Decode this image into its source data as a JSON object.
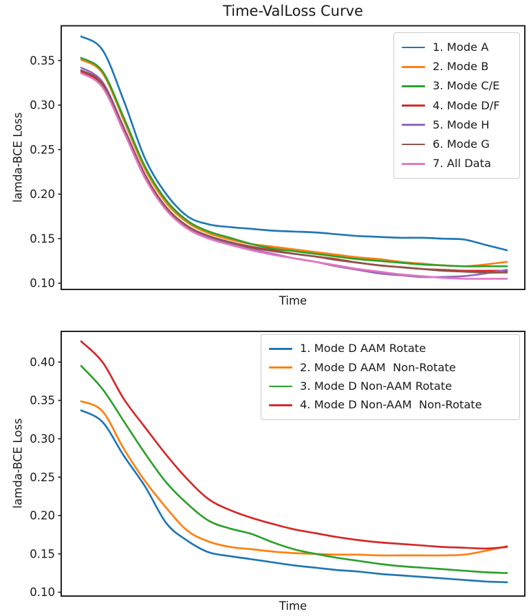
{
  "figure_title": "Time-ValLoss Curve",
  "chart_data": [
    {
      "type": "line",
      "title": "Time-ValLoss Curve",
      "xlabel": "Time",
      "ylabel": "lamda-BCE Loss",
      "x_tick_labels_visible": false,
      "ylim": [
        0.093,
        0.389
      ],
      "yticks": [
        0.1,
        0.15,
        0.2,
        0.25,
        0.3,
        0.35
      ],
      "grid": false,
      "legend_position": "upper right",
      "series": [
        {
          "name": "1. Mode A",
          "color": "#1f77b4",
          "values": [
            0.377,
            0.362,
            0.305,
            0.24,
            0.2,
            0.175,
            0.166,
            0.163,
            0.161,
            0.159,
            0.158,
            0.157,
            0.155,
            0.153,
            0.152,
            0.151,
            0.151,
            0.15,
            0.149,
            0.143,
            0.137
          ]
        },
        {
          "name": "2. Mode B",
          "color": "#ff7f0e",
          "values": [
            0.351,
            0.336,
            0.283,
            0.228,
            0.19,
            0.168,
            0.156,
            0.149,
            0.144,
            0.141,
            0.138,
            0.135,
            0.132,
            0.129,
            0.127,
            0.124,
            0.122,
            0.12,
            0.119,
            0.121,
            0.124
          ]
        },
        {
          "name": "3. Mode C/E",
          "color": "#2ca02c",
          "values": [
            0.353,
            0.338,
            0.286,
            0.231,
            0.193,
            0.17,
            0.158,
            0.151,
            0.144,
            0.139,
            0.136,
            0.133,
            0.13,
            0.127,
            0.125,
            0.123,
            0.121,
            0.12,
            0.119,
            0.119,
            0.119
          ]
        },
        {
          "name": "4. Mode D/F",
          "color": "#d62728",
          "values": [
            0.337,
            0.322,
            0.272,
            0.22,
            0.184,
            0.163,
            0.152,
            0.146,
            0.141,
            0.137,
            0.133,
            0.13,
            0.127,
            0.123,
            0.12,
            0.118,
            0.116,
            0.115,
            0.114,
            0.114,
            0.114
          ]
        },
        {
          "name": "5. Mode H",
          "color": "#9467bd",
          "values": [
            0.342,
            0.326,
            0.275,
            0.222,
            0.185,
            0.163,
            0.152,
            0.144,
            0.138,
            0.133,
            0.128,
            0.124,
            0.119,
            0.115,
            0.111,
            0.109,
            0.107,
            0.107,
            0.108,
            0.111,
            0.115
          ]
        },
        {
          "name": "6. Mode G",
          "color": "#8c564b",
          "values": [
            0.339,
            0.324,
            0.273,
            0.221,
            0.185,
            0.164,
            0.153,
            0.146,
            0.14,
            0.136,
            0.133,
            0.13,
            0.126,
            0.123,
            0.12,
            0.118,
            0.116,
            0.114,
            0.113,
            0.112,
            0.112
          ]
        },
        {
          "name": "7. All Data",
          "color": "#e377c2",
          "values": [
            0.336,
            0.32,
            0.27,
            0.218,
            0.182,
            0.161,
            0.15,
            0.143,
            0.137,
            0.132,
            0.128,
            0.124,
            0.12,
            0.116,
            0.113,
            0.11,
            0.108,
            0.106,
            0.105,
            0.105,
            0.105
          ]
        }
      ]
    },
    {
      "type": "line",
      "title": "",
      "xlabel": "Time",
      "ylabel": "lamda-BCE Loss",
      "x_tick_labels_visible": false,
      "ylim": [
        0.095,
        0.44
      ],
      "yticks": [
        0.1,
        0.15,
        0.2,
        0.25,
        0.3,
        0.35,
        0.4
      ],
      "grid": false,
      "legend_position": "upper right",
      "series": [
        {
          "name": "1. Mode D AAM Rotate",
          "color": "#1f77b4",
          "values": [
            0.337,
            0.322,
            0.278,
            0.238,
            0.19,
            0.167,
            0.152,
            0.147,
            0.143,
            0.139,
            0.135,
            0.132,
            0.129,
            0.127,
            0.124,
            0.122,
            0.12,
            0.118,
            0.116,
            0.114,
            0.113
          ]
        },
        {
          "name": "2. Mode D AAM  Non-Rotate",
          "color": "#ff7f0e",
          "values": [
            0.349,
            0.336,
            0.287,
            0.245,
            0.21,
            0.18,
            0.166,
            0.159,
            0.156,
            0.153,
            0.151,
            0.15,
            0.149,
            0.149,
            0.148,
            0.148,
            0.148,
            0.148,
            0.149,
            0.154,
            0.16
          ]
        },
        {
          "name": "3. Mode D Non-AAM Rotate",
          "color": "#2ca02c",
          "values": [
            0.395,
            0.365,
            0.323,
            0.281,
            0.243,
            0.215,
            0.193,
            0.183,
            0.176,
            0.165,
            0.156,
            0.15,
            0.145,
            0.141,
            0.137,
            0.134,
            0.132,
            0.13,
            0.128,
            0.126,
            0.125
          ]
        },
        {
          "name": "4. Mode D Non-AAM  Non-Rotate",
          "color": "#d62728",
          "values": [
            0.427,
            0.4,
            0.352,
            0.315,
            0.279,
            0.247,
            0.221,
            0.207,
            0.197,
            0.189,
            0.182,
            0.177,
            0.172,
            0.168,
            0.165,
            0.163,
            0.161,
            0.159,
            0.158,
            0.157,
            0.159
          ]
        }
      ]
    }
  ]
}
